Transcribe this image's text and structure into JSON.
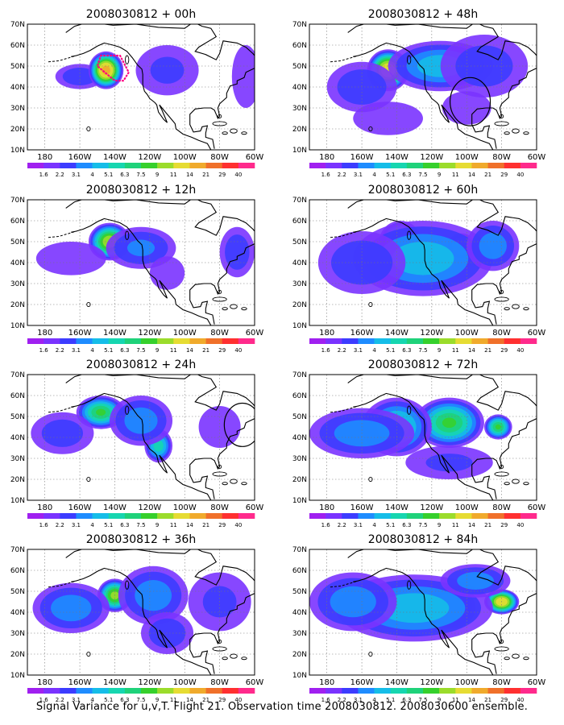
{
  "figure": {
    "caption": "Signal Variance for u,v,T. Flight 21. Observation time 2008030812. 2008030600 ensemble."
  },
  "colorbar": {
    "labels": [
      "1.6",
      "2.2",
      "3.1",
      "4",
      "5.1",
      "6.3",
      "7.5",
      "9",
      "11",
      "14",
      "21",
      "29",
      "40"
    ],
    "colors": [
      "#a020f0",
      "#7a33ff",
      "#3c3cff",
      "#1e8cff",
      "#15bde8",
      "#16d6b0",
      "#1fd27a",
      "#36d02c",
      "#9bdc2b",
      "#e6dc33",
      "#f0aa2c",
      "#f0702a",
      "#ff3030",
      "#ff2a8c"
    ]
  },
  "chart_data": [
    {
      "type": "heatmap",
      "title": "2008030812 + 00h",
      "xlabel": "",
      "ylabel": "",
      "x_ticks": [
        "180",
        "160W",
        "140W",
        "120W",
        "100W",
        "80W",
        "60W"
      ],
      "y_ticks": [
        "10N",
        "20N",
        "30N",
        "40N",
        "50N",
        "60N",
        "70N"
      ],
      "xlim": [
        -190,
        -60
      ],
      "ylim": [
        10,
        70
      ],
      "grid": true,
      "blobs": [
        {
          "lon": -160,
          "lat": 45,
          "value": 3,
          "rx": 14,
          "ry": 6
        },
        {
          "lon": -145,
          "lat": 48,
          "value": 16,
          "rx": 10,
          "ry": 9
        },
        {
          "lon": -110,
          "lat": 48,
          "value": 2.5,
          "rx": 18,
          "ry": 12
        },
        {
          "lon": -65,
          "lat": 45,
          "value": 2,
          "rx": 8,
          "ry": 15
        }
      ],
      "annotations": [
        {
          "type": "dotted-polygon",
          "color": "#ff0080",
          "points": [
            [
              -148,
              55
            ],
            [
              -137,
              55
            ],
            [
              -132,
              47
            ],
            [
              -135,
              43
            ],
            [
              -140,
              43
            ],
            [
              -150,
              50
            ]
          ]
        }
      ]
    },
    {
      "type": "heatmap",
      "title": "2008030812 + 48h",
      "xlabel": "",
      "ylabel": "",
      "x_ticks": [
        "180",
        "160W",
        "140W",
        "120W",
        "100W",
        "80W",
        "60W"
      ],
      "y_ticks": [
        "10N",
        "20N",
        "30N",
        "40N",
        "50N",
        "60N",
        "70N"
      ],
      "xlim": [
        -190,
        -60
      ],
      "ylim": [
        10,
        70
      ],
      "grid": true,
      "blobs": [
        {
          "lon": -145,
          "lat": 48,
          "value": 14,
          "rx": 12,
          "ry": 10
        },
        {
          "lon": -115,
          "lat": 50,
          "value": 5,
          "rx": 30,
          "ry": 12
        },
        {
          "lon": -160,
          "lat": 40,
          "value": 3,
          "rx": 20,
          "ry": 12
        },
        {
          "lon": -90,
          "lat": 50,
          "value": 2.8,
          "rx": 25,
          "ry": 15
        },
        {
          "lon": -145,
          "lat": 25,
          "value": 2,
          "rx": 20,
          "ry": 8
        },
        {
          "lon": -100,
          "lat": 30,
          "value": 2,
          "rx": 14,
          "ry": 8
        }
      ],
      "annotations": [
        {
          "type": "circle",
          "lon": -98,
          "lat": 33,
          "r_deg": 10
        }
      ]
    },
    {
      "type": "heatmap",
      "title": "2008030812 + 12h",
      "xlabel": "",
      "ylabel": "",
      "x_ticks": [
        "180",
        "160W",
        "140W",
        "120W",
        "100W",
        "80W",
        "60W"
      ],
      "y_ticks": [
        "10N",
        "20N",
        "30N",
        "40N",
        "50N",
        "60N",
        "70N"
      ],
      "xlim": [
        -190,
        -60
      ],
      "ylim": [
        10,
        70
      ],
      "grid": true,
      "blobs": [
        {
          "lon": -143,
          "lat": 50,
          "value": 11,
          "rx": 12,
          "ry": 9
        },
        {
          "lon": -125,
          "lat": 47,
          "value": 3.5,
          "rx": 20,
          "ry": 10
        },
        {
          "lon": -165,
          "lat": 42,
          "value": 2,
          "rx": 20,
          "ry": 8
        },
        {
          "lon": -70,
          "lat": 45,
          "value": 3,
          "rx": 10,
          "ry": 12
        },
        {
          "lon": -110,
          "lat": 35,
          "value": 2,
          "rx": 10,
          "ry": 8
        }
      ],
      "annotations": []
    },
    {
      "type": "heatmap",
      "title": "2008030812 + 60h",
      "xlabel": "",
      "ylabel": "",
      "x_ticks": [
        "180",
        "160W",
        "140W",
        "120W",
        "100W",
        "80W",
        "60W"
      ],
      "y_ticks": [
        "10N",
        "20N",
        "30N",
        "40N",
        "50N",
        "60N",
        "70N"
      ],
      "xlim": [
        -190,
        -60
      ],
      "ylim": [
        10,
        70
      ],
      "grid": true,
      "blobs": [
        {
          "lon": -138,
          "lat": 50,
          "value": 9,
          "rx": 12,
          "ry": 10
        },
        {
          "lon": -103,
          "lat": 48,
          "value": 8,
          "rx": 8,
          "ry": 6
        },
        {
          "lon": -125,
          "lat": 42,
          "value": 5,
          "rx": 40,
          "ry": 18
        },
        {
          "lon": -85,
          "lat": 48,
          "value": 4,
          "rx": 15,
          "ry": 12
        },
        {
          "lon": -160,
          "lat": 40,
          "value": 3,
          "rx": 25,
          "ry": 15
        }
      ],
      "annotations": []
    },
    {
      "type": "heatmap",
      "title": "2008030812 + 24h",
      "xlabel": "",
      "ylabel": "",
      "x_ticks": [
        "180",
        "160W",
        "140W",
        "120W",
        "100W",
        "80W",
        "60W"
      ],
      "y_ticks": [
        "10N",
        "20N",
        "30N",
        "40N",
        "50N",
        "60N",
        "70N"
      ],
      "xlim": [
        -190,
        -60
      ],
      "ylim": [
        10,
        70
      ],
      "grid": true,
      "blobs": [
        {
          "lon": -148,
          "lat": 52,
          "value": 8,
          "rx": 14,
          "ry": 8
        },
        {
          "lon": -115,
          "lat": 36,
          "value": 6,
          "rx": 8,
          "ry": 8
        },
        {
          "lon": -125,
          "lat": 48,
          "value": 4,
          "rx": 18,
          "ry": 12
        },
        {
          "lon": -170,
          "lat": 42,
          "value": 2.8,
          "rx": 18,
          "ry": 10
        },
        {
          "lon": -80,
          "lat": 45,
          "value": 2,
          "rx": 12,
          "ry": 10
        }
      ],
      "annotations": [
        {
          "type": "circle",
          "lon": -67,
          "lat": 46,
          "r_deg": 9
        }
      ]
    },
    {
      "type": "heatmap",
      "title": "2008030812 + 72h",
      "xlabel": "",
      "ylabel": "",
      "x_ticks": [
        "180",
        "160W",
        "140W",
        "120W",
        "100W",
        "80W",
        "60W"
      ],
      "y_ticks": [
        "10N",
        "20N",
        "30N",
        "40N",
        "50N",
        "60N",
        "70N"
      ],
      "xlim": [
        -190,
        -60
      ],
      "ylim": [
        10,
        70
      ],
      "grid": true,
      "blobs": [
        {
          "lon": -110,
          "lat": 47,
          "value": 8,
          "rx": 20,
          "ry": 12
        },
        {
          "lon": -82,
          "lat": 45,
          "value": 8,
          "rx": 8,
          "ry": 6
        },
        {
          "lon": -140,
          "lat": 45,
          "value": 6,
          "rx": 20,
          "ry": 14
        },
        {
          "lon": -160,
          "lat": 42,
          "value": 4,
          "rx": 30,
          "ry": 12
        },
        {
          "lon": -110,
          "lat": 28,
          "value": 2.5,
          "rx": 25,
          "ry": 8
        }
      ],
      "annotations": []
    },
    {
      "type": "heatmap",
      "title": "2008030812 + 36h",
      "xlabel": "",
      "ylabel": "",
      "x_ticks": [
        "180",
        "160W",
        "140W",
        "120W",
        "100W",
        "80W",
        "60W"
      ],
      "y_ticks": [
        "10N",
        "20N",
        "30N",
        "40N",
        "50N",
        "60N",
        "70N"
      ],
      "xlim": [
        -190,
        -60
      ],
      "ylim": [
        10,
        70
      ],
      "grid": true,
      "blobs": [
        {
          "lon": -140,
          "lat": 48,
          "value": 10,
          "rx": 10,
          "ry": 8
        },
        {
          "lon": -118,
          "lat": 48,
          "value": 4,
          "rx": 20,
          "ry": 14
        },
        {
          "lon": -165,
          "lat": 42,
          "value": 4,
          "rx": 22,
          "ry": 12
        },
        {
          "lon": -110,
          "lat": 30,
          "value": 3,
          "rx": 15,
          "ry": 10
        },
        {
          "lon": -80,
          "lat": 45,
          "value": 2.5,
          "rx": 18,
          "ry": 14
        }
      ],
      "annotations": []
    },
    {
      "type": "heatmap",
      "title": "2008030812 + 84h",
      "xlabel": "",
      "ylabel": "",
      "x_ticks": [
        "180",
        "160W",
        "140W",
        "120W",
        "100W",
        "80W",
        "60W"
      ],
      "y_ticks": [
        "10N",
        "20N",
        "30N",
        "40N",
        "50N",
        "60N",
        "70N"
      ],
      "xlim": [
        -190,
        -60
      ],
      "ylim": [
        10,
        70
      ],
      "grid": true,
      "blobs": [
        {
          "lon": -80,
          "lat": 45,
          "value": 14,
          "rx": 10,
          "ry": 6
        },
        {
          "lon": -110,
          "lat": 42,
          "value": 8,
          "rx": 15,
          "ry": 10
        },
        {
          "lon": -130,
          "lat": 42,
          "value": 5,
          "rx": 45,
          "ry": 16
        },
        {
          "lon": -165,
          "lat": 45,
          "value": 4,
          "rx": 25,
          "ry": 14
        },
        {
          "lon": -95,
          "lat": 55,
          "value": 4,
          "rx": 20,
          "ry": 8
        }
      ],
      "annotations": []
    }
  ]
}
